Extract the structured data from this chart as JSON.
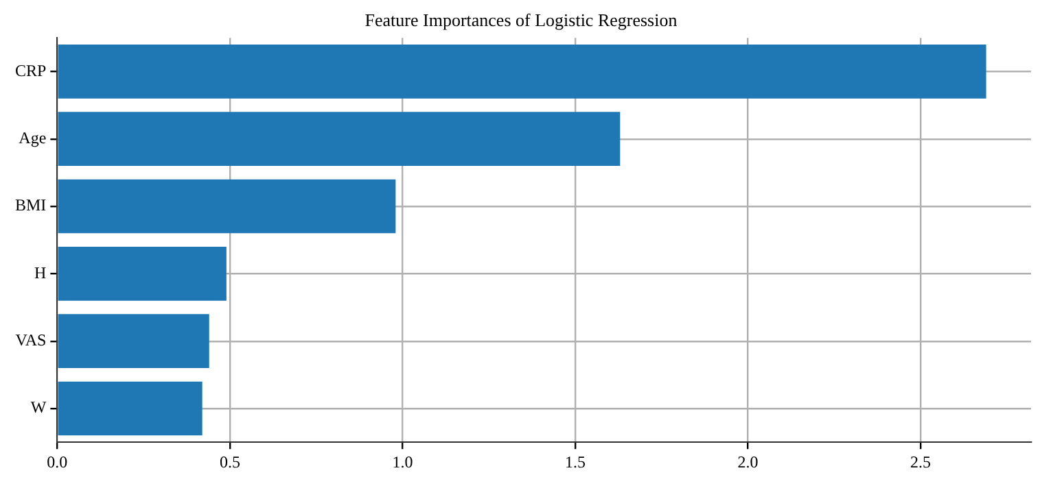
{
  "chart_data": {
    "type": "bar",
    "orientation": "horizontal",
    "title": "Feature Importances of Logistic Regression",
    "categories": [
      "CRP",
      "Age",
      "BMI",
      "H",
      "VAS",
      "W"
    ],
    "values": [
      2.69,
      1.63,
      0.98,
      0.49,
      0.44,
      0.42
    ],
    "color": "#1f77b4",
    "xlim": [
      0,
      2.82
    ],
    "xticks": [
      {
        "value": 0,
        "label": "0.0"
      },
      {
        "value": 0.5,
        "label": "0.5"
      },
      {
        "value": 1,
        "label": "1.0"
      },
      {
        "value": 1.5,
        "label": "1.5"
      },
      {
        "value": 2,
        "label": "2.0"
      },
      {
        "value": 2.5,
        "label": "2.5"
      }
    ],
    "grid": true,
    "legend": false
  }
}
